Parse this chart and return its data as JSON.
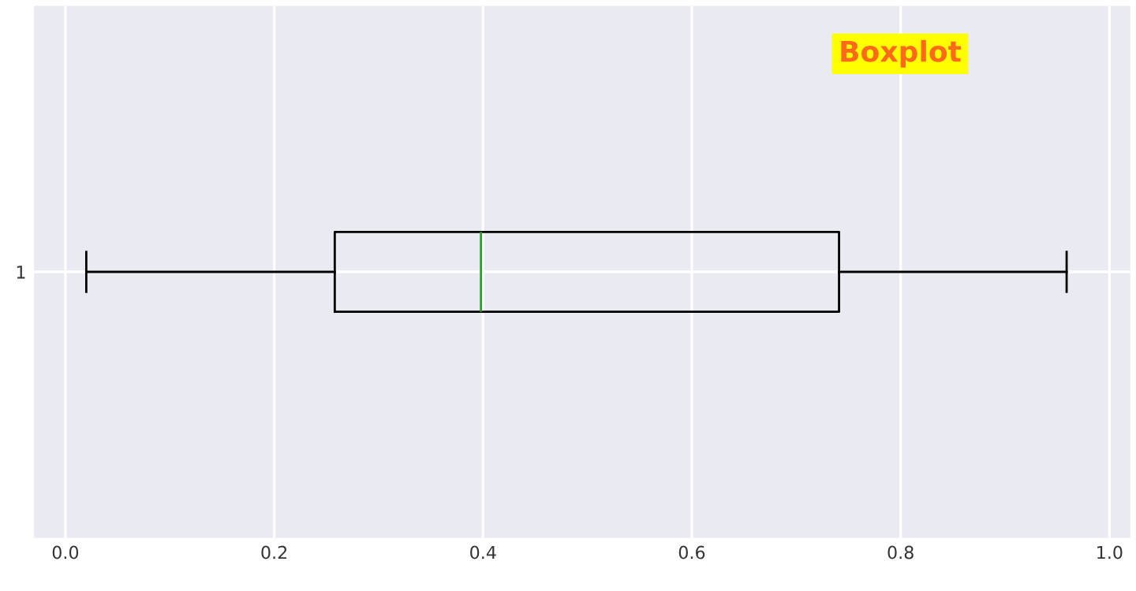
{
  "chart_data": {
    "type": "box",
    "title": "Boxplot",
    "orientation": "horizontal",
    "categories": [
      "1"
    ],
    "boxes": [
      {
        "low": 0.02,
        "q1": 0.258,
        "median": 0.398,
        "q3": 0.741,
        "high": 0.959
      }
    ],
    "color": "#000000",
    "xlim": [
      -0.03,
      1.02
    ],
    "xticks": [
      {
        "value": 0,
        "label": "0.0"
      },
      0.2,
      0.4,
      0.6,
      0.8,
      {
        "value": 1,
        "label": "1.0"
      }
    ],
    "grid": true
  }
}
